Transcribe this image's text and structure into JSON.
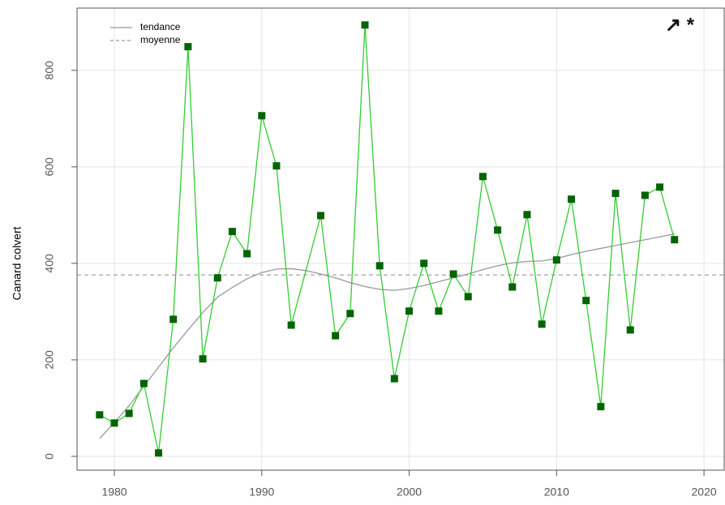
{
  "chart_data": {
    "type": "line",
    "y_label": "Canard colvert",
    "annotation": "↗ *",
    "x": [
      1979,
      1980,
      1981,
      1982,
      1983,
      1984,
      1985,
      1986,
      1987,
      1988,
      1989,
      1990,
      1991,
      1992,
      1994,
      1995,
      1996,
      1997,
      1998,
      1999,
      2000,
      2001,
      2002,
      2003,
      2004,
      2005,
      2006,
      2007,
      2008,
      2009,
      2010,
      2011,
      2012,
      2013,
      2014,
      2015,
      2016,
      2017,
      2018
    ],
    "values": [
      86,
      69,
      89,
      151,
      7,
      284,
      849,
      202,
      370,
      466,
      420,
      706,
      602,
      272,
      499,
      250,
      296,
      894,
      395,
      161,
      301,
      400,
      301,
      378,
      331,
      580,
      469,
      351,
      501,
      274,
      407,
      533,
      323,
      103,
      545,
      262,
      541,
      558,
      449
    ],
    "color": "#33cc33",
    "marker_color": "#006400",
    "trend": {
      "name": "tendance",
      "color": "#999999",
      "x": [
        1979,
        1980,
        1981,
        1982,
        1983,
        1984,
        1985,
        1986,
        1987,
        1988,
        1989,
        1990,
        1991,
        1992,
        1993,
        1994,
        1995,
        1996,
        1997,
        1998,
        1999,
        2000,
        2001,
        2002,
        2003,
        2004,
        2005,
        2006,
        2007,
        2008,
        2009,
        2010,
        2011,
        2012,
        2013,
        2014,
        2015,
        2016,
        2017,
        2018
      ],
      "values": [
        37,
        70,
        105,
        145,
        185,
        225,
        262,
        298,
        330,
        350,
        368,
        381,
        388,
        389,
        385,
        378,
        370,
        360,
        352,
        346,
        344,
        348,
        354,
        362,
        370,
        378,
        387,
        395,
        401,
        404,
        405,
        410,
        418,
        425,
        431,
        437,
        443,
        449,
        455,
        461
      ]
    },
    "mean": {
      "name": "moyenne",
      "color": "#999999",
      "value": 376
    },
    "xlim": [
      1977.47,
      2021.37
    ],
    "ylim": [
      -28.6,
      929
    ],
    "xticks": [
      1980,
      1990,
      2000,
      2010,
      2020
    ],
    "yticks": [
      0,
      200,
      400,
      600,
      800
    ],
    "grid": true
  }
}
